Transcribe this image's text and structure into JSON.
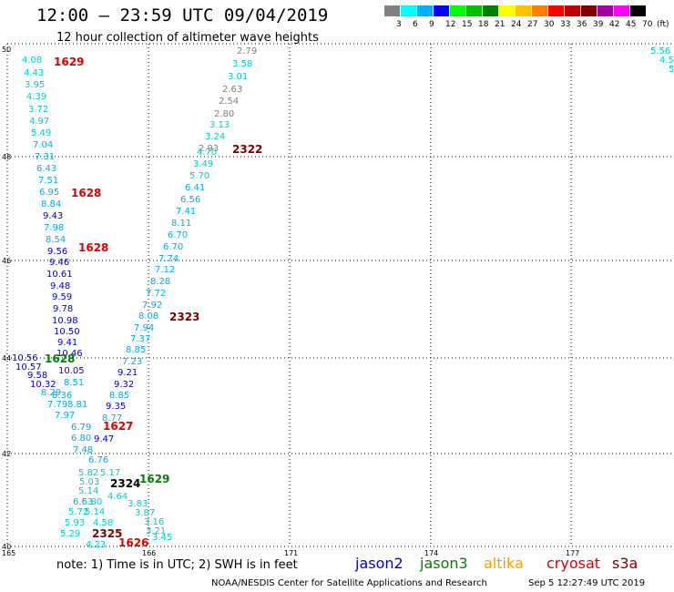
{
  "header": {
    "title": "12:00 – 23:59 UTC 09/04/2019",
    "subtitle": "12 hour collection of altimeter wave heights"
  },
  "legend": {
    "colors": [
      "#808080",
      "#00ffff",
      "#00b0ff",
      "#0000ff",
      "#00ff00",
      "#00c000",
      "#008000",
      "#ffff00",
      "#ffc000",
      "#ff8000",
      "#ff0000",
      "#c00000",
      "#800000",
      "#a000a0",
      "#ff00ff",
      "#000000"
    ],
    "labels": [
      "3",
      "6",
      "9",
      "12",
      "15",
      "18",
      "21",
      "24",
      "27",
      "30",
      "33",
      "36",
      "39",
      "42",
      "45",
      "70",
      "(ft)"
    ]
  },
  "axes": {
    "lat_labels": [
      "50",
      "48",
      "46",
      "44",
      "42",
      "40"
    ],
    "lon_labels": [
      "165",
      "166",
      "171",
      "174",
      "177"
    ]
  },
  "wave_heights": [
    {
      "v": "2.79",
      "c": "#808080"
    },
    {
      "v": "3.58",
      "c": "#00cccc"
    },
    {
      "v": "3.01",
      "c": "#00cccc"
    },
    {
      "v": "2.63",
      "c": "#808080"
    },
    {
      "v": "2.54",
      "c": "#808080"
    },
    {
      "v": "2.80",
      "c": "#808080"
    },
    {
      "v": "3.13",
      "c": "#00cccc"
    },
    {
      "v": "3.24",
      "c": "#00cccc"
    },
    {
      "v": "2.93",
      "c": "#808080"
    },
    {
      "v": "4.70",
      "c": "#00cccc"
    },
    {
      "v": "3.49",
      "c": "#00cccc"
    },
    {
      "v": "5.70",
      "c": "#00cccc"
    },
    {
      "v": "6.41",
      "c": "#00aaee"
    },
    {
      "v": "6.56",
      "c": "#00aaee"
    },
    {
      "v": "7.41",
      "c": "#00aaee"
    },
    {
      "v": "8.11",
      "c": "#00aaee"
    },
    {
      "v": "6.70",
      "c": "#00aaee"
    },
    {
      "v": "6.70",
      "c": "#00aaee"
    },
    {
      "v": "7.74",
      "c": "#00aaee"
    },
    {
      "v": "7.12",
      "c": "#00aaee"
    },
    {
      "v": "8.28",
      "c": "#00aaee"
    },
    {
      "v": "7.72",
      "c": "#00aaee"
    },
    {
      "v": "7.92",
      "c": "#00aaee"
    },
    {
      "v": "8.08",
      "c": "#00aaee"
    },
    {
      "v": "7.94",
      "c": "#00aaee"
    },
    {
      "v": "7.37",
      "c": "#00aaee"
    },
    {
      "v": "8.85",
      "c": "#00aaee"
    },
    {
      "v": "7.23",
      "c": "#00aaee"
    },
    {
      "v": "9.21",
      "c": "#0000cc"
    },
    {
      "v": "9.32",
      "c": "#0000cc"
    },
    {
      "v": "8.85",
      "c": "#00aaee"
    },
    {
      "v": "9.35",
      "c": "#0000cc"
    },
    {
      "v": "8.77",
      "c": "#00aaee"
    },
    {
      "v": "9.47",
      "c": "#0000cc"
    },
    {
      "v": "4.08",
      "c": "#00cccc"
    },
    {
      "v": "4.43",
      "c": "#00cccc"
    },
    {
      "v": "3.95",
      "c": "#00cccc"
    },
    {
      "v": "4.39",
      "c": "#00cccc"
    },
    {
      "v": "3.72",
      "c": "#00cccc"
    },
    {
      "v": "4.97",
      "c": "#00cccc"
    },
    {
      "v": "5.49",
      "c": "#00cccc"
    },
    {
      "v": "7.04",
      "c": "#00aaee"
    },
    {
      "v": "7.31",
      "c": "#00aaee"
    },
    {
      "v": "6.43",
      "c": "#00aaee"
    },
    {
      "v": "7.51",
      "c": "#00aaee"
    },
    {
      "v": "6.95",
      "c": "#00aaee"
    },
    {
      "v": "8.84",
      "c": "#00aaee"
    },
    {
      "v": "9.43",
      "c": "#0000cc"
    },
    {
      "v": "7.98",
      "c": "#00aaee"
    },
    {
      "v": "8.54",
      "c": "#00aaee"
    },
    {
      "v": "9.56",
      "c": "#0000cc"
    },
    {
      "v": "9.46",
      "c": "#0000cc"
    },
    {
      "v": "10.61",
      "c": "#0000cc"
    },
    {
      "v": "9.48",
      "c": "#0000cc"
    },
    {
      "v": "9.59",
      "c": "#0000cc"
    },
    {
      "v": "9.78",
      "c": "#0000cc"
    },
    {
      "v": "10.98",
      "c": "#0000cc"
    },
    {
      "v": "10.50",
      "c": "#0000cc"
    },
    {
      "v": "9.41",
      "c": "#0000cc"
    },
    {
      "v": "10.46",
      "c": "#0000cc"
    },
    {
      "v": "10.56",
      "c": "#0000cc"
    },
    {
      "v": "10.57",
      "c": "#0000cc"
    },
    {
      "v": "9.58",
      "c": "#0000cc"
    },
    {
      "v": "10.32",
      "c": "#0000cc"
    },
    {
      "v": "10.05",
      "c": "#0000cc"
    },
    {
      "v": "8.51",
      "c": "#00aaee"
    },
    {
      "v": "8.29",
      "c": "#00aaee"
    },
    {
      "v": "8.36",
      "c": "#00aaee"
    },
    {
      "v": "7.79",
      "c": "#00aaee"
    },
    {
      "v": "8.81",
      "c": "#00aaee"
    },
    {
      "v": "7.97",
      "c": "#00aaee"
    },
    {
      "v": "6.79",
      "c": "#00aaee"
    },
    {
      "v": "6.80",
      "c": "#00aaee"
    },
    {
      "v": "7.48",
      "c": "#00aaee"
    },
    {
      "v": "6.76",
      "c": "#00aaee"
    },
    {
      "v": "5.82",
      "c": "#00cccc"
    },
    {
      "v": "5.17",
      "c": "#00cccc"
    },
    {
      "v": "5.03",
      "c": "#00cccc"
    },
    {
      "v": "5.14",
      "c": "#00cccc"
    },
    {
      "v": "4.64",
      "c": "#00cccc"
    },
    {
      "v": "3.83",
      "c": "#00cccc"
    },
    {
      "v": "3.87",
      "c": "#00cccc"
    },
    {
      "v": "6.63",
      "c": "#00aaee"
    },
    {
      "v": "5.80",
      "c": "#00cccc"
    },
    {
      "v": "5.72",
      "c": "#00cccc"
    },
    {
      "v": "5.14",
      "c": "#00cccc"
    },
    {
      "v": "5.93",
      "c": "#00cccc"
    },
    {
      "v": "4.58",
      "c": "#00cccc"
    },
    {
      "v": "3.16",
      "c": "#00cccc"
    },
    {
      "v": "5.29",
      "c": "#00cccc"
    },
    {
      "v": "3.21",
      "c": "#00cccc"
    },
    {
      "v": "3.45",
      "c": "#00cccc"
    },
    {
      "v": "4.23",
      "c": "#00cccc"
    },
    {
      "v": "5.56",
      "c": "#00cccc"
    },
    {
      "v": "4.5",
      "c": "#00cccc"
    },
    {
      "v": "5",
      "c": "#00cccc"
    }
  ],
  "pass_times": [
    {
      "t": "1629",
      "c": "#dd0000"
    },
    {
      "t": "2322",
      "c": "#800000"
    },
    {
      "t": "1628",
      "c": "#dd0000"
    },
    {
      "t": "1628",
      "c": "#dd0000"
    },
    {
      "t": "2323",
      "c": "#800000"
    },
    {
      "t": "1628",
      "c": "#008000"
    },
    {
      "t": "1627",
      "c": "#dd0000"
    },
    {
      "t": "2324",
      "c": "#000000"
    },
    {
      "t": "1629",
      "c": "#008000"
    },
    {
      "t": "2325",
      "c": "#800000"
    },
    {
      "t": "1626",
      "c": "#dd0000"
    }
  ],
  "footer": {
    "note": "note: 1) Time is in UTC; 2) SWH is in feet",
    "satellites": [
      {
        "name": "jason2",
        "color": "#0000cc"
      },
      {
        "name": "jason3",
        "color": "#008000"
      },
      {
        "name": "altika",
        "color": "#ff9900"
      },
      {
        "name": "cryosat",
        "color": "#dd0000"
      },
      {
        "name": "s3a",
        "color": "#800000"
      }
    ],
    "credit": "NOAA/NESDIS Center for Satellite Applications and Research",
    "timestamp": "Sep  5 12:27:49 UTC 2019"
  }
}
